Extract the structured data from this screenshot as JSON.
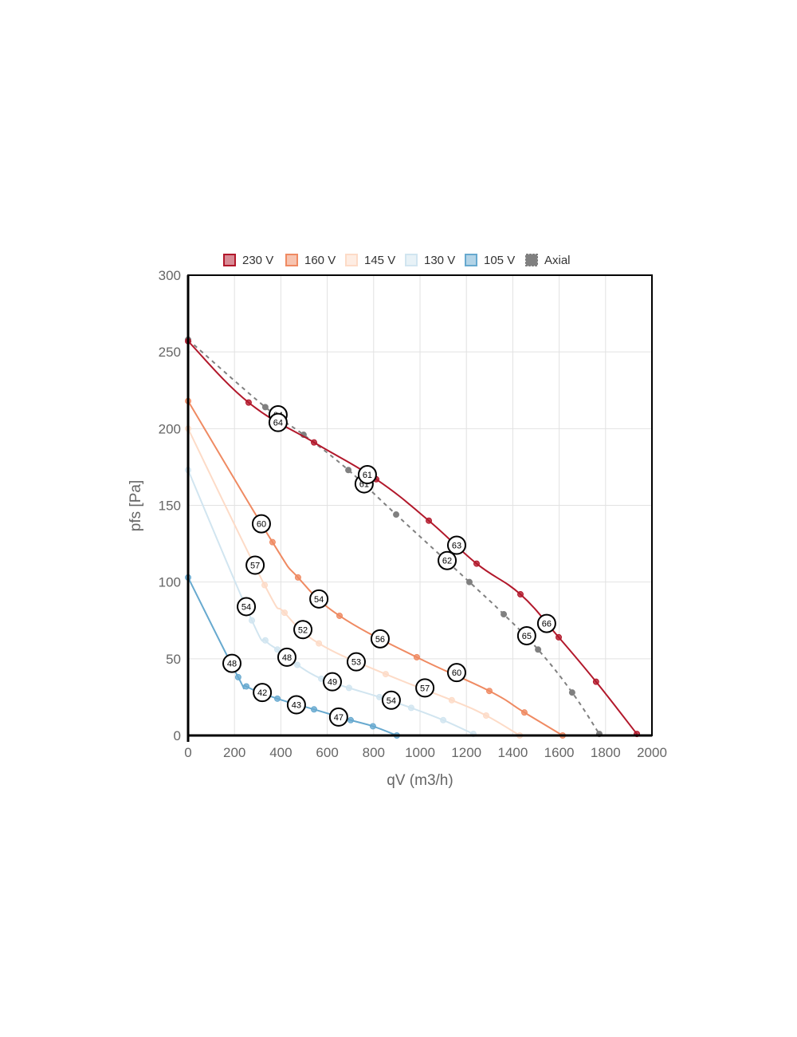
{
  "chart_data": {
    "type": "line",
    "xlabel": "qV (m3/h)",
    "ylabel": "pfs [Pa]",
    "xlim": [
      0,
      2000
    ],
    "ylim": [
      0,
      300
    ],
    "xticks": [
      0,
      200,
      400,
      600,
      800,
      1000,
      1200,
      1400,
      1600,
      1800,
      2000
    ],
    "yticks": [
      0,
      50,
      100,
      150,
      200,
      250,
      300
    ],
    "grid": true,
    "legend_position": "top",
    "series": [
      {
        "name": "230 V",
        "color": "#b2182b",
        "dashed": false,
        "points": [
          [
            0,
            257
          ],
          [
            261,
            217
          ],
          [
            543,
            191
          ],
          [
            811,
            167
          ],
          [
            1038,
            140
          ],
          [
            1244,
            112
          ],
          [
            1433,
            92
          ],
          [
            1598,
            64
          ],
          [
            1759,
            35
          ],
          [
            1935,
            1
          ]
        ],
        "labels": [
          {
            "x": 388,
            "y": 204,
            "text": "64"
          },
          {
            "x": 773,
            "y": 170,
            "text": "61"
          },
          {
            "x": 1158,
            "y": 124,
            "text": "63"
          },
          {
            "x": 1546,
            "y": 73,
            "text": "66"
          }
        ]
      },
      {
        "name": "160 V",
        "color": "#ef8a62",
        "dashed": false,
        "points": [
          [
            0,
            218
          ],
          [
            364,
            126
          ],
          [
            474,
            103
          ],
          [
            653,
            78
          ],
          [
            986,
            51
          ],
          [
            1299,
            29
          ],
          [
            1450,
            15
          ],
          [
            1615,
            0
          ]
        ],
        "labels": [
          {
            "x": 316,
            "y": 138,
            "text": "60"
          },
          {
            "x": 564,
            "y": 89,
            "text": "54"
          },
          {
            "x": 828,
            "y": 63,
            "text": "56"
          },
          {
            "x": 1158,
            "y": 41,
            "text": "60"
          }
        ]
      },
      {
        "name": "145 V",
        "color": "#fddbc7",
        "dashed": false,
        "points": [
          [
            0,
            200
          ],
          [
            330,
            98
          ],
          [
            416,
            80
          ],
          [
            564,
            60
          ],
          [
            852,
            40
          ],
          [
            1137,
            23
          ],
          [
            1285,
            13
          ],
          [
            1430,
            0
          ]
        ],
        "labels": [
          {
            "x": 289,
            "y": 111,
            "text": "57"
          },
          {
            "x": 495,
            "y": 69,
            "text": "52"
          },
          {
            "x": 725,
            "y": 48,
            "text": "53"
          },
          {
            "x": 1021,
            "y": 31,
            "text": "57"
          }
        ]
      },
      {
        "name": "130 V",
        "color": "#d1e5f0",
        "dashed": false,
        "points": [
          [
            0,
            173
          ],
          [
            275,
            75
          ],
          [
            333,
            62
          ],
          [
            385,
            56
          ],
          [
            471,
            46
          ],
          [
            574,
            37
          ],
          [
            694,
            31
          ],
          [
            825,
            25
          ],
          [
            962,
            18
          ],
          [
            1100,
            10
          ],
          [
            1230,
            1
          ]
        ],
        "labels": [
          {
            "x": 251,
            "y": 84,
            "text": "54"
          },
          {
            "x": 426,
            "y": 51,
            "text": "48"
          },
          {
            "x": 622,
            "y": 35,
            "text": "49"
          },
          {
            "x": 876,
            "y": 23,
            "text": "54"
          }
        ]
      },
      {
        "name": "105 V",
        "color": "#67a9cf",
        "dashed": false,
        "points": [
          [
            0,
            103
          ],
          [
            216,
            38
          ],
          [
            251,
            32
          ],
          [
            385,
            24
          ],
          [
            543,
            17
          ],
          [
            701,
            10
          ],
          [
            797,
            6
          ],
          [
            900,
            0
          ]
        ],
        "labels": [
          {
            "x": 189,
            "y": 47,
            "text": "48"
          },
          {
            "x": 320,
            "y": 28,
            "text": "42"
          },
          {
            "x": 467,
            "y": 20,
            "text": "43"
          },
          {
            "x": 649,
            "y": 12,
            "text": "47"
          }
        ]
      },
      {
        "name": "Axial",
        "color": "#808080",
        "dashed": true,
        "points": [
          [
            0,
            258
          ],
          [
            333,
            214
          ],
          [
            498,
            196
          ],
          [
            691,
            173
          ],
          [
            897,
            144
          ],
          [
            1213,
            100
          ],
          [
            1361,
            79
          ],
          [
            1509,
            56
          ],
          [
            1656,
            28
          ],
          [
            1773,
            1
          ]
        ],
        "labels": [
          {
            "x": 388,
            "y": 209,
            "text": "64"
          },
          {
            "x": 759,
            "y": 164,
            "text": "61"
          },
          {
            "x": 1117,
            "y": 114,
            "text": "62"
          },
          {
            "x": 1460,
            "y": 65,
            "text": "65"
          }
        ]
      }
    ]
  }
}
